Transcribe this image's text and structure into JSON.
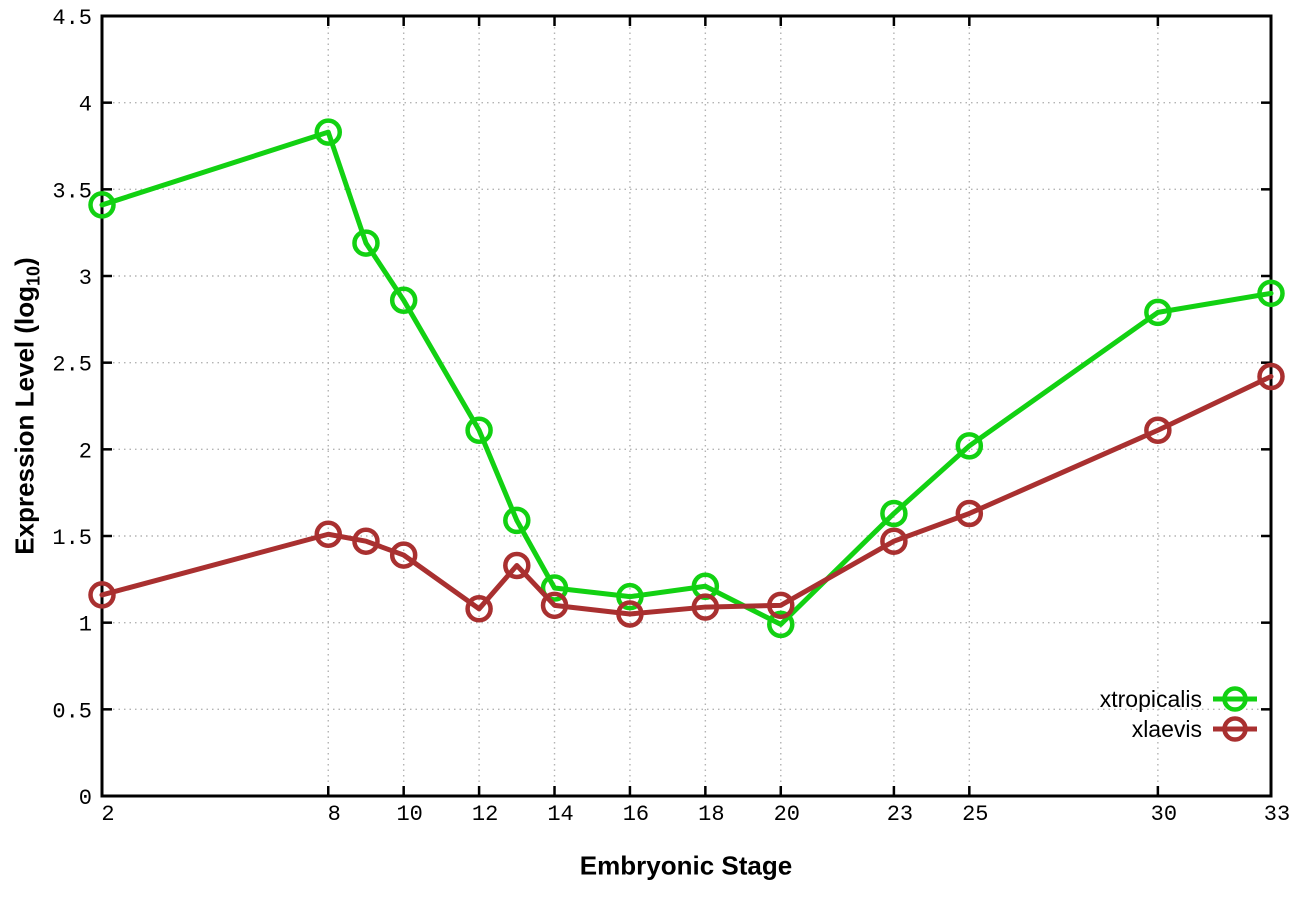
{
  "chart_data": {
    "type": "line",
    "title": "",
    "xlabel": "Embryonic Stage",
    "ylabel": "Expression Level (log10)",
    "ylabel_parts": {
      "prefix": "Expression Level (log",
      "sub": "10",
      "suffix": ")"
    },
    "xlim": [
      2,
      33
    ],
    "ylim": [
      0,
      4.5
    ],
    "x_ticks": [
      2,
      8,
      10,
      12,
      14,
      16,
      18,
      20,
      23,
      25,
      30,
      33
    ],
    "y_ticks": [
      0,
      0.5,
      1,
      1.5,
      2,
      2.5,
      3,
      3.5,
      4,
      4.5
    ],
    "grid": true,
    "legend_position": "bottom-right",
    "x": [
      2,
      8,
      9,
      10,
      12,
      13,
      14,
      16,
      18,
      20,
      23,
      25,
      30,
      33
    ],
    "series": [
      {
        "name": "xtropicalis",
        "color": "#12d112",
        "values": [
          3.41,
          3.83,
          3.19,
          2.86,
          2.11,
          1.59,
          1.2,
          1.15,
          1.21,
          0.99,
          1.63,
          2.02,
          2.79,
          2.9
        ]
      },
      {
        "name": "xlaevis",
        "color": "#a93030",
        "values": [
          1.16,
          1.51,
          1.47,
          1.39,
          1.08,
          1.33,
          1.1,
          1.05,
          1.09,
          1.1,
          1.47,
          1.63,
          2.11,
          2.42
        ]
      }
    ]
  },
  "colors": {
    "background": "#ffffff",
    "axis": "#000000",
    "grid": "#b3b3b3"
  }
}
